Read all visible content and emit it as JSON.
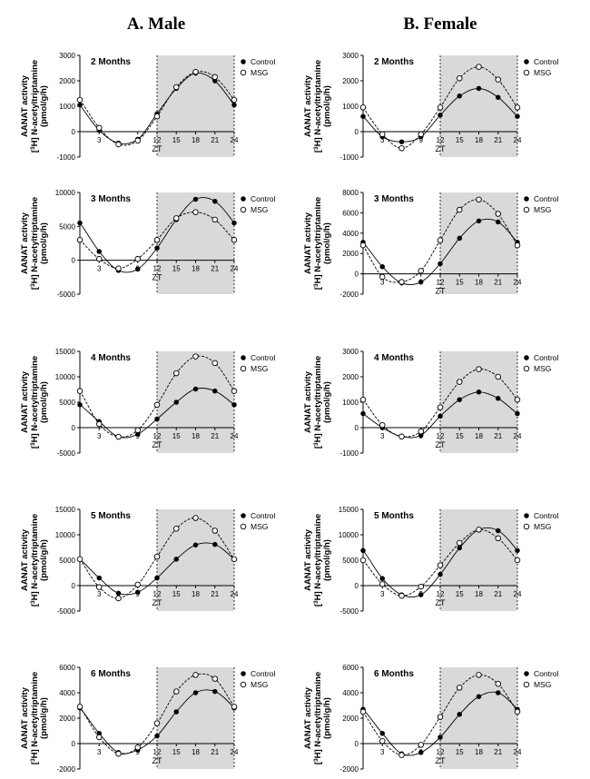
{
  "titles": {
    "male": "A. Male",
    "female": "B. Female"
  },
  "ylabel_line1": "AANAT activity",
  "ylabel_line2_prefix": "[",
  "ylabel_line2_sup": "3",
  "ylabel_line2_suffix": "H] N-acetyltriptamine",
  "ylabel_line3": "(pmol/g/h)",
  "zt_label": "ZT",
  "legend": {
    "control": "Control",
    "msg": "MSG"
  },
  "colors": {
    "dark_phase": "#d9d9d9",
    "control_marker": "#000000",
    "msg_marker": "#ffffff",
    "line": "#000000"
  },
  "x_ticks": [
    3,
    9,
    12,
    15,
    18,
    21,
    24
  ],
  "chart_data": [
    {
      "type": "line",
      "panel": "male-2",
      "title": "2 Months",
      "ylim": [
        -1000,
        3000
      ],
      "yticks": [
        -1000,
        0,
        1000,
        2000,
        3000
      ],
      "x": [
        0,
        3,
        6,
        9,
        12,
        15,
        18,
        21,
        24
      ],
      "series": [
        {
          "name": "Control",
          "values": [
            1050,
            50,
            -450,
            -300,
            700,
            1700,
            2300,
            2000,
            1050
          ]
        },
        {
          "name": "MSG",
          "values": [
            1250,
            150,
            -500,
            -350,
            600,
            1750,
            2350,
            2150,
            1250
          ]
        }
      ]
    },
    {
      "type": "line",
      "panel": "female-2",
      "title": "2 Months",
      "ylim": [
        -1000,
        3000
      ],
      "yticks": [
        -1000,
        0,
        1000,
        2000,
        3000
      ],
      "x": [
        0,
        3,
        6,
        9,
        12,
        15,
        18,
        21,
        24
      ],
      "series": [
        {
          "name": "Control",
          "values": [
            600,
            -200,
            -400,
            -200,
            650,
            1400,
            1700,
            1350,
            600
          ]
        },
        {
          "name": "MSG",
          "values": [
            950,
            -100,
            -650,
            -100,
            950,
            2100,
            2550,
            2050,
            950
          ]
        }
      ]
    },
    {
      "type": "line",
      "panel": "male-3",
      "title": "3 Months",
      "ylim": [
        -5000,
        10000
      ],
      "yticks": [
        -5000,
        0,
        5000,
        10000
      ],
      "x": [
        0,
        3,
        6,
        9,
        12,
        15,
        18,
        21,
        24
      ],
      "series": [
        {
          "name": "Control",
          "values": [
            5500,
            1300,
            -1500,
            -1300,
            1800,
            6000,
            9000,
            8700,
            5500
          ]
        },
        {
          "name": "MSG",
          "values": [
            3000,
            200,
            -1200,
            200,
            3000,
            6200,
            7100,
            6000,
            3000
          ]
        }
      ]
    },
    {
      "type": "line",
      "panel": "female-3",
      "title": "3 Months",
      "ylim": [
        -2000,
        8000
      ],
      "yticks": [
        -2000,
        0,
        2000,
        4000,
        6000,
        8000
      ],
      "x": [
        0,
        3,
        6,
        9,
        12,
        15,
        18,
        21,
        24
      ],
      "series": [
        {
          "name": "Control",
          "values": [
            3100,
            700,
            -900,
            -800,
            1000,
            3500,
            5200,
            5100,
            3100
          ]
        },
        {
          "name": "MSG",
          "values": [
            2800,
            -300,
            -800,
            300,
            3300,
            6300,
            7300,
            5900,
            2800
          ]
        }
      ]
    },
    {
      "type": "line",
      "panel": "male-4",
      "title": "4 Months",
      "ylim": [
        -5000,
        15000
      ],
      "yticks": [
        -5000,
        0,
        5000,
        10000,
        15000
      ],
      "x": [
        0,
        3,
        6,
        9,
        12,
        15,
        18,
        21,
        24
      ],
      "series": [
        {
          "name": "Control",
          "values": [
            4500,
            1200,
            -1800,
            -1300,
            1700,
            5000,
            7600,
            7200,
            4500
          ]
        },
        {
          "name": "MSG",
          "values": [
            7200,
            700,
            -1800,
            -500,
            4500,
            10700,
            14000,
            12700,
            7200
          ]
        }
      ]
    },
    {
      "type": "line",
      "panel": "female-4",
      "title": "4 Months",
      "ylim": [
        -1000,
        3000
      ],
      "yticks": [
        -1000,
        0,
        1000,
        2000,
        3000
      ],
      "x": [
        0,
        3,
        6,
        9,
        12,
        15,
        18,
        21,
        24
      ],
      "series": [
        {
          "name": "Control",
          "values": [
            550,
            0,
            -350,
            -300,
            450,
            1100,
            1400,
            1150,
            550
          ]
        },
        {
          "name": "MSG",
          "values": [
            1100,
            100,
            -350,
            -150,
            800,
            1800,
            2300,
            2000,
            1100
          ]
        }
      ]
    },
    {
      "type": "line",
      "panel": "male-5",
      "title": "5 Months",
      "ylim": [
        -5000,
        15000
      ],
      "yticks": [
        -5000,
        0,
        5000,
        10000,
        15000
      ],
      "x": [
        0,
        3,
        6,
        9,
        12,
        15,
        18,
        21,
        24
      ],
      "series": [
        {
          "name": "Control",
          "values": [
            5200,
            1500,
            -1500,
            -1300,
            1500,
            5200,
            8000,
            8100,
            5200
          ]
        },
        {
          "name": "MSG",
          "values": [
            5200,
            -300,
            -2500,
            200,
            5700,
            11200,
            13300,
            10800,
            5200
          ]
        }
      ]
    },
    {
      "type": "line",
      "panel": "female-5",
      "title": "5 Months",
      "ylim": [
        -5000,
        15000
      ],
      "yticks": [
        -5000,
        0,
        5000,
        10000,
        15000
      ],
      "x": [
        0,
        3,
        6,
        9,
        12,
        15,
        18,
        21,
        24
      ],
      "series": [
        {
          "name": "Control",
          "values": [
            6900,
            1400,
            -1800,
            -1800,
            2200,
            7400,
            11000,
            10800,
            6900
          ]
        },
        {
          "name": "MSG",
          "values": [
            5000,
            300,
            -2000,
            -200,
            4000,
            8400,
            11000,
            9300,
            5000
          ]
        }
      ]
    },
    {
      "type": "line",
      "panel": "male-6",
      "title": "6 Months",
      "ylim": [
        -2000,
        6000
      ],
      "yticks": [
        -2000,
        0,
        2000,
        4000,
        6000
      ],
      "x": [
        0,
        3,
        6,
        9,
        12,
        15,
        18,
        21,
        24
      ],
      "series": [
        {
          "name": "Control",
          "values": [
            2800,
            800,
            -700,
            -500,
            600,
            2500,
            4000,
            4100,
            2800
          ]
        },
        {
          "name": "MSG",
          "values": [
            2900,
            500,
            -800,
            -300,
            1600,
            4100,
            5400,
            5100,
            2900
          ]
        }
      ]
    },
    {
      "type": "line",
      "panel": "female-6",
      "title": "6 Months",
      "ylim": [
        -2000,
        6000
      ],
      "yticks": [
        -2000,
        0,
        2000,
        4000,
        6000
      ],
      "x": [
        0,
        3,
        6,
        9,
        12,
        15,
        18,
        21,
        24
      ],
      "series": [
        {
          "name": "Control",
          "values": [
            2700,
            800,
            -800,
            -700,
            500,
            2300,
            3700,
            4000,
            2700
          ]
        },
        {
          "name": "MSG",
          "values": [
            2500,
            200,
            -900,
            -100,
            2100,
            4400,
            5400,
            4700,
            2500
          ]
        }
      ]
    }
  ]
}
